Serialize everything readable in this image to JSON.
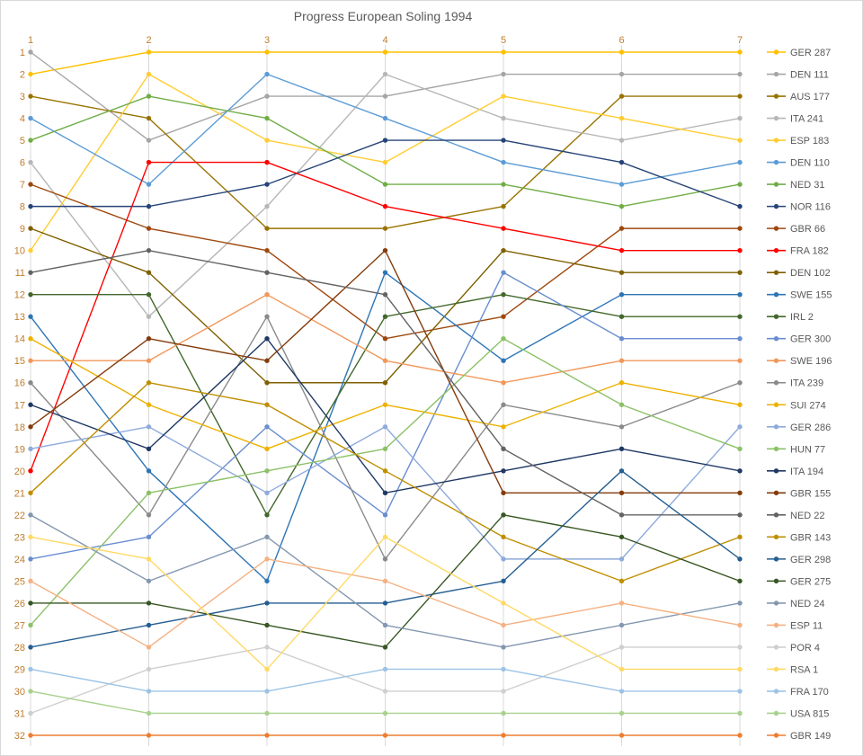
{
  "title": "Progress European Soling 1994",
  "colors": {
    "background": "#FFFFFF",
    "border": "#D9D9D9",
    "grid": "#D9D9D9",
    "title_text": "#595959",
    "axis_label_text": "#BF7D2E",
    "legend_text": "#595959"
  },
  "chart_data": {
    "type": "line",
    "subtype": "bump-chart-rank-progress",
    "title": "Progress European Soling 1994",
    "xlabel": "",
    "ylabel": "",
    "x": [
      1,
      2,
      3,
      4,
      5,
      6,
      7
    ],
    "x_axis": {
      "position": "top",
      "labels": [
        "1",
        "2",
        "3",
        "4",
        "5",
        "6",
        "7"
      ]
    },
    "y_axis": {
      "min": 1,
      "max": 32,
      "inverted": true,
      "position": "left"
    },
    "grid": {
      "vertical": true,
      "horizontal": false
    },
    "legend_position": "right",
    "markers": true,
    "series": [
      {
        "name": "GER 287",
        "color": "#FFC000",
        "values": [
          2,
          1,
          1,
          1,
          1,
          1,
          1
        ]
      },
      {
        "name": "DEN 111",
        "color": "#A5A5A5",
        "values": [
          1,
          5,
          3,
          3,
          2,
          2,
          2
        ]
      },
      {
        "name": "AUS 177",
        "color": "#997300",
        "values": [
          3,
          4,
          9,
          9,
          8,
          3,
          3
        ]
      },
      {
        "name": "ITA 241",
        "color": "#B7B7B7",
        "values": [
          6,
          13,
          8,
          2,
          4,
          5,
          4
        ]
      },
      {
        "name": "ESP 183",
        "color": "#FFCD33",
        "values": [
          10,
          2,
          5,
          6,
          3,
          4,
          5
        ]
      },
      {
        "name": "DEN 110",
        "color": "#5B9BD5",
        "values": [
          4,
          7,
          2,
          4,
          6,
          7,
          6
        ]
      },
      {
        "name": "NED 31",
        "color": "#70AD47",
        "values": [
          5,
          3,
          4,
          7,
          7,
          8,
          7
        ]
      },
      {
        "name": "NOR 116",
        "color": "#264478",
        "values": [
          8,
          8,
          7,
          5,
          5,
          6,
          8
        ]
      },
      {
        "name": "GBR 66",
        "color": "#9E480E",
        "values": [
          7,
          9,
          10,
          14,
          13,
          9,
          9
        ]
      },
      {
        "name": "FRA 182",
        "color": "#FF0000",
        "values": [
          20,
          6,
          6,
          8,
          9,
          10,
          10
        ]
      },
      {
        "name": "DEN 102",
        "color": "#7F6000",
        "values": [
          9,
          11,
          16,
          16,
          10,
          11,
          11
        ]
      },
      {
        "name": "SWE 155",
        "color": "#2E75B6",
        "values": [
          13,
          20,
          25,
          11,
          15,
          12,
          12
        ]
      },
      {
        "name": "IRL 2",
        "color": "#43682B",
        "values": [
          12,
          12,
          22,
          13,
          12,
          13,
          13
        ]
      },
      {
        "name": "GER 300",
        "color": "#698ED0",
        "values": [
          24,
          23,
          18,
          22,
          11,
          14,
          14
        ]
      },
      {
        "name": "SWE 196",
        "color": "#F1975A",
        "values": [
          15,
          15,
          12,
          15,
          16,
          15,
          15
        ]
      },
      {
        "name": "ITA 239",
        "color": "#8A8A8A",
        "values": [
          16,
          22,
          13,
          24,
          17,
          18,
          16
        ]
      },
      {
        "name": "SUI 274",
        "color": "#EDB200",
        "values": [
          14,
          17,
          19,
          17,
          18,
          16,
          17
        ]
      },
      {
        "name": "GER 286",
        "color": "#8FAADC",
        "values": [
          19,
          18,
          21,
          18,
          24,
          24,
          18
        ]
      },
      {
        "name": "HUN 77",
        "color": "#8CC168",
        "values": [
          27,
          21,
          20,
          19,
          14,
          17,
          19
        ]
      },
      {
        "name": "ITA 194",
        "color": "#1F3864",
        "values": [
          17,
          19,
          14,
          21,
          20,
          19,
          20
        ]
      },
      {
        "name": "GBR 155",
        "color": "#843C0C",
        "values": [
          18,
          14,
          15,
          10,
          21,
          21,
          21
        ]
      },
      {
        "name": "NED 22",
        "color": "#636363",
        "values": [
          11,
          10,
          11,
          12,
          19,
          22,
          22
        ]
      },
      {
        "name": "GBR 143",
        "color": "#BF8F00",
        "values": [
          21,
          16,
          17,
          20,
          23,
          25,
          23
        ]
      },
      {
        "name": "GER 298",
        "color": "#255E91",
        "values": [
          28,
          27,
          26,
          26,
          25,
          20,
          24
        ]
      },
      {
        "name": "GER 275",
        "color": "#375623",
        "values": [
          26,
          26,
          27,
          28,
          22,
          23,
          25
        ]
      },
      {
        "name": "NED 24",
        "color": "#8497B0",
        "values": [
          22,
          25,
          23,
          27,
          28,
          27,
          26
        ]
      },
      {
        "name": "ESP 11",
        "color": "#F4B183",
        "values": [
          25,
          28,
          24,
          25,
          27,
          26,
          27
        ]
      },
      {
        "name": "POR 4",
        "color": "#CFCFCF",
        "values": [
          31,
          29,
          28,
          30,
          30,
          28,
          28
        ]
      },
      {
        "name": "RSA 1",
        "color": "#FFD966",
        "values": [
          23,
          24,
          29,
          23,
          26,
          29,
          29
        ]
      },
      {
        "name": "FRA 170",
        "color": "#9DC3E6",
        "values": [
          29,
          30,
          30,
          29,
          29,
          30,
          30
        ]
      },
      {
        "name": "USA 815",
        "color": "#A9D18E",
        "values": [
          30,
          31,
          31,
          31,
          31,
          31,
          31
        ]
      },
      {
        "name": "GBR 149",
        "color": "#ED7D31",
        "values": [
          32,
          32,
          32,
          32,
          32,
          32,
          32
        ]
      }
    ]
  }
}
